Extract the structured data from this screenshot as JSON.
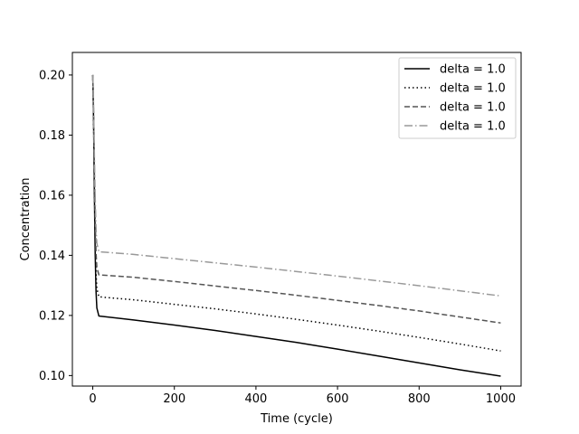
{
  "chart_data": {
    "type": "line",
    "title": "",
    "xlabel": "Time (cycle)",
    "ylabel": "Concentration",
    "xlim": [
      -50,
      1050
    ],
    "ylim": [
      0.0965,
      0.2075
    ],
    "xticks": [
      0,
      200,
      400,
      600,
      800,
      1000
    ],
    "xtick_labels": [
      "0",
      "200",
      "400",
      "600",
      "800",
      "1000"
    ],
    "yticks": [
      0.1,
      0.12,
      0.14,
      0.16,
      0.18,
      0.2
    ],
    "ytick_labels": [
      "0.10",
      "0.12",
      "0.14",
      "0.16",
      "0.18",
      "0.20"
    ],
    "grid": false,
    "legend_position": "top-right",
    "series": [
      {
        "name": "delta = 1.0",
        "color": "#000000",
        "dash": "solid",
        "x": [
          0,
          2,
          4,
          6,
          8,
          10,
          15,
          100,
          200,
          300,
          400,
          500,
          600,
          700,
          800,
          900,
          1000
        ],
        "y": [
          0.2,
          0.185,
          0.16,
          0.14,
          0.128,
          0.1225,
          0.1198,
          0.1185,
          0.1168,
          0.115,
          0.113,
          0.111,
          0.1088,
          0.1065,
          0.1042,
          0.1019,
          0.0998
        ]
      },
      {
        "name": "delta = 1.0",
        "color": "#000000",
        "dash": "dotted",
        "x": [
          0,
          2,
          4,
          6,
          8,
          10,
          15,
          100,
          200,
          300,
          400,
          500,
          600,
          700,
          800,
          900,
          1000
        ],
        "y": [
          0.2,
          0.186,
          0.163,
          0.145,
          0.134,
          0.129,
          0.1262,
          0.1252,
          0.1237,
          0.1222,
          0.1205,
          0.1187,
          0.1168,
          0.1148,
          0.1127,
          0.1105,
          0.1082
        ]
      },
      {
        "name": "delta = 1.0",
        "color": "#555555",
        "dash": "dashed",
        "x": [
          0,
          2,
          4,
          6,
          8,
          10,
          15,
          100,
          200,
          300,
          400,
          500,
          600,
          700,
          800,
          900,
          1000
        ],
        "y": [
          0.2,
          0.188,
          0.168,
          0.152,
          0.141,
          0.136,
          0.1335,
          0.1327,
          0.1313,
          0.1298,
          0.1283,
          0.1267,
          0.125,
          0.1233,
          0.1215,
          0.1195,
          0.1175
        ]
      },
      {
        "name": "delta = 1.0",
        "color": "#999999",
        "dash": "dashdot",
        "x": [
          0,
          2,
          4,
          6,
          8,
          10,
          15,
          100,
          200,
          300,
          400,
          500,
          600,
          700,
          800,
          900,
          1000
        ],
        "y": [
          0.2,
          0.19,
          0.173,
          0.159,
          0.149,
          0.144,
          0.1412,
          0.1403,
          0.1389,
          0.1375,
          0.1361,
          0.1346,
          0.1331,
          0.1315,
          0.1299,
          0.1282,
          0.1265
        ]
      }
    ]
  }
}
